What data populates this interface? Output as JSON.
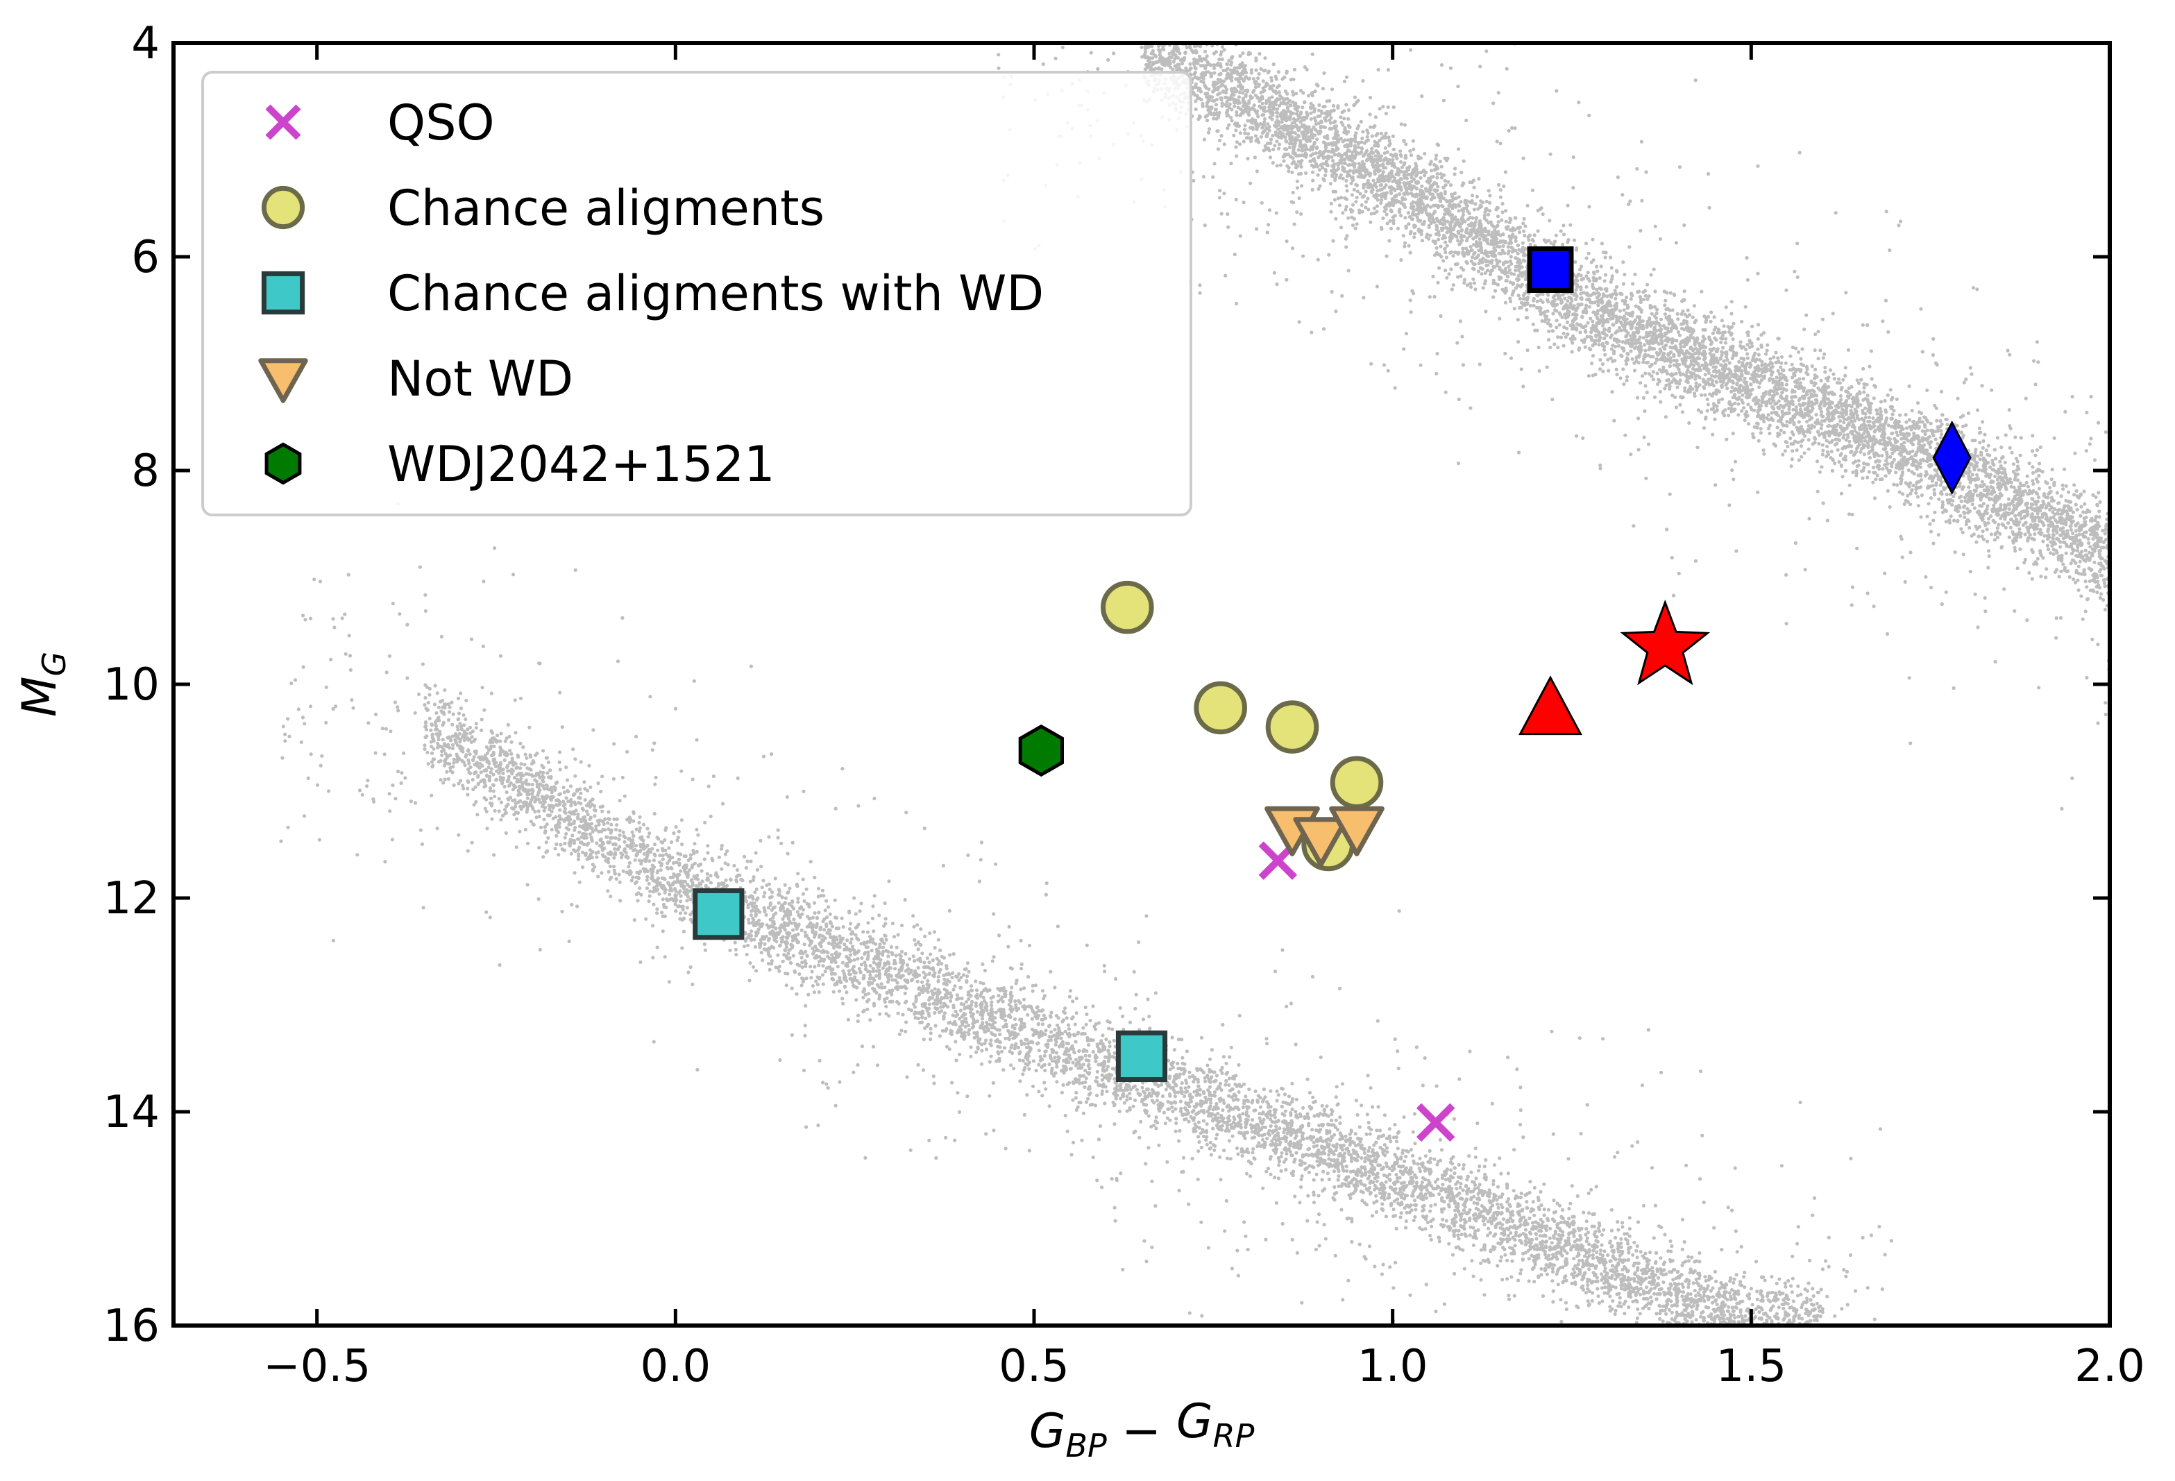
{
  "chart_data": {
    "type": "scatter",
    "title": "",
    "xlabel": {
      "main": "G",
      "sub1": "BP",
      "minus": " − ",
      "main2": "G",
      "sub2": "RP"
    },
    "ylabel": {
      "main": "M",
      "sub": "G"
    },
    "xlim": [
      -0.7,
      2.0
    ],
    "ylim": [
      16,
      4
    ],
    "y_inverted": true,
    "xticks": [
      -0.5,
      0.0,
      0.5,
      1.0,
      1.5,
      2.0
    ],
    "xtick_labels": [
      "−0.5",
      "0.0",
      "0.5",
      "1.0",
      "1.5",
      "2.0"
    ],
    "yticks": [
      4,
      6,
      8,
      10,
      12,
      14,
      16
    ],
    "ytick_labels": [
      "4",
      "6",
      "8",
      "10",
      "12",
      "14",
      "16"
    ],
    "grid": false,
    "legend_position": "top-left",
    "background_populations": [
      {
        "name": "main sequence",
        "color": "#bdbdbd",
        "x_range": [
          0.65,
          2.0
        ],
        "y_at_x": [
          [
            0.65,
            4.0
          ],
          [
            1.0,
            5.3
          ],
          [
            1.25,
            6.4
          ],
          [
            1.5,
            7.2
          ],
          [
            1.75,
            7.9
          ],
          [
            2.0,
            8.8
          ]
        ],
        "spread": 0.5
      },
      {
        "name": "white dwarf sequence",
        "color": "#bdbdbd",
        "x_range": [
          -0.35,
          1.6
        ],
        "y_at_x": [
          [
            -0.35,
            10.4
          ],
          [
            0.0,
            11.85
          ],
          [
            0.5,
            13.3
          ],
          [
            1.0,
            14.6
          ],
          [
            1.5,
            16.0
          ]
        ],
        "spread": 0.45
      }
    ],
    "series": [
      {
        "name": "QSO",
        "marker": "x",
        "color": "#cc44cc",
        "points": [
          [
            0.84,
            11.65
          ],
          [
            1.06,
            14.1
          ]
        ]
      },
      {
        "name": "Chance aligments",
        "marker": "circle",
        "color": "#e3e37a",
        "edge": "#6b6b4a",
        "points": [
          [
            0.63,
            9.28
          ],
          [
            0.76,
            10.22
          ],
          [
            0.86,
            10.4
          ],
          [
            0.95,
            10.92
          ],
          [
            0.91,
            11.5
          ]
        ]
      },
      {
        "name": "Chance aligments with WD",
        "marker": "square",
        "color": "#3ec8c8",
        "edge": "#2a3a3a",
        "points": [
          [
            0.06,
            12.15
          ],
          [
            0.65,
            13.48
          ]
        ]
      },
      {
        "name": "Not WD",
        "marker": "triangle-down",
        "color": "#f7be6e",
        "edge": "#6e6450",
        "points": [
          [
            0.86,
            11.35
          ],
          [
            0.9,
            11.45
          ],
          [
            0.95,
            11.35
          ]
        ]
      },
      {
        "name": "WDJ2042+1521",
        "marker": "hexagon",
        "color": "#007a00",
        "edge": "#000000",
        "points": [
          [
            0.51,
            10.62
          ]
        ]
      }
    ],
    "unlabeled_markers": [
      {
        "marker": "square",
        "color": "#0000ff",
        "point": [
          1.22,
          6.12
        ]
      },
      {
        "marker": "diamond",
        "color": "#0000ff",
        "point": [
          1.78,
          7.88
        ]
      },
      {
        "marker": "star",
        "color": "#ff0000",
        "point": [
          1.38,
          9.65
        ]
      },
      {
        "marker": "triangle-up",
        "color": "#ff0000",
        "point": [
          1.22,
          10.22
        ]
      }
    ]
  }
}
